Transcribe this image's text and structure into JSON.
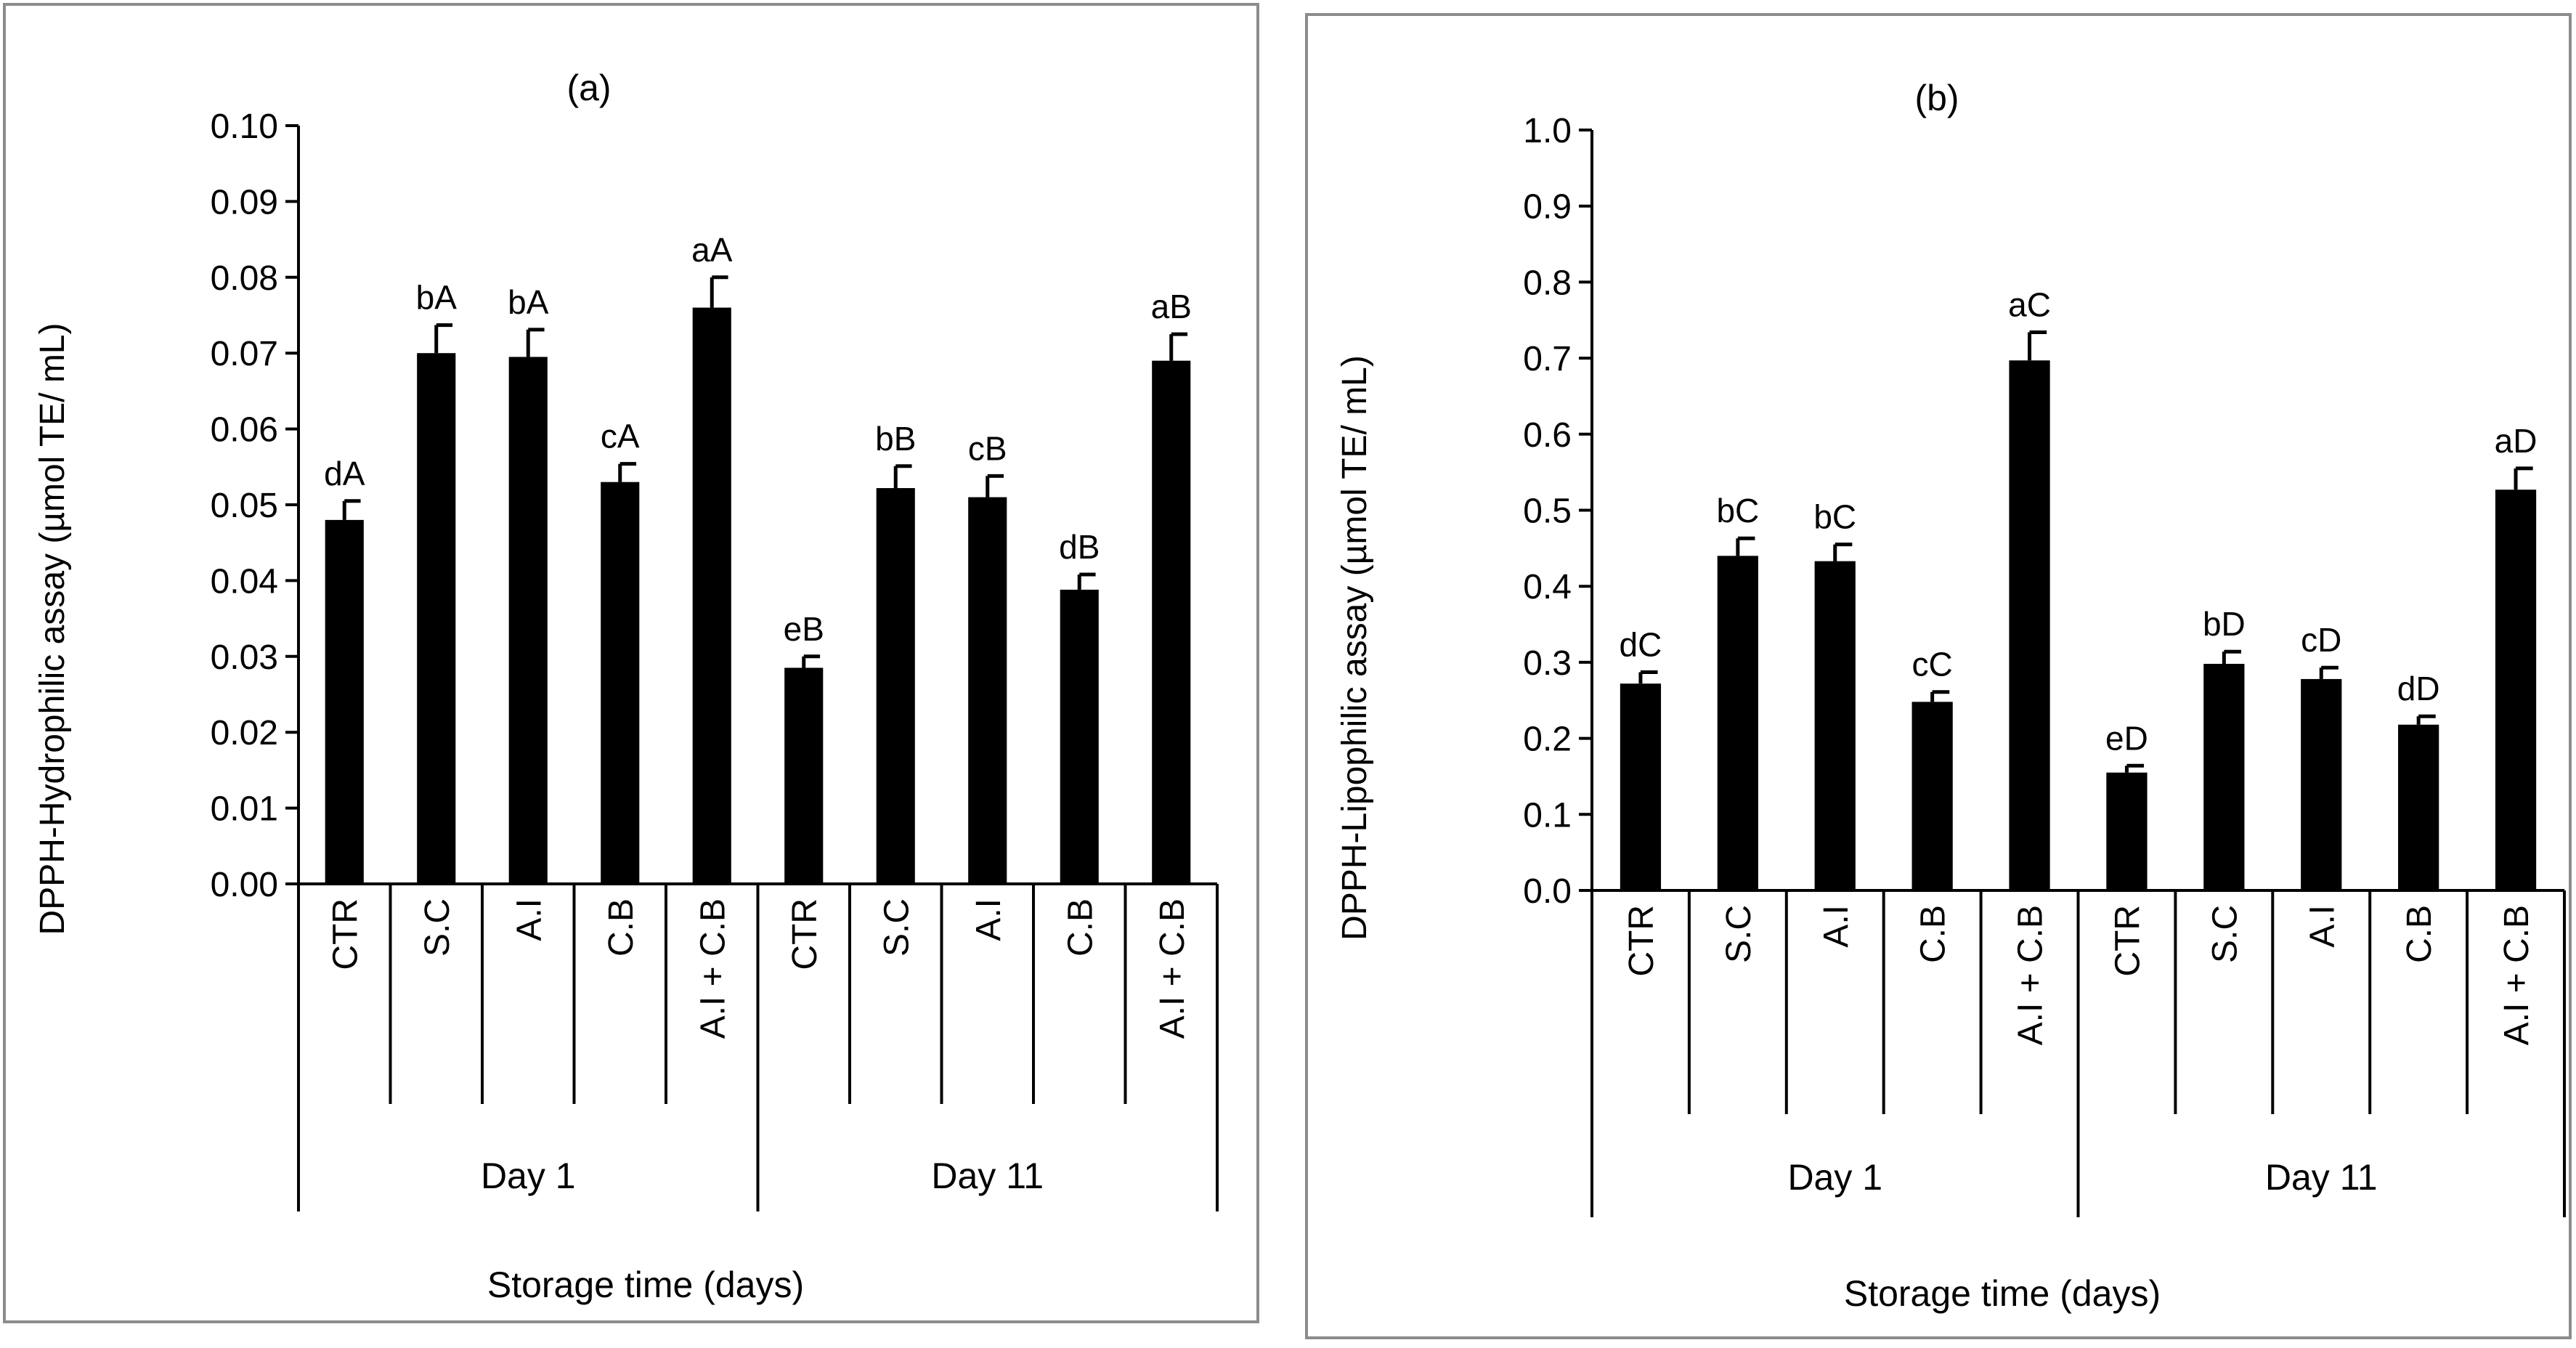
{
  "chart_data": [
    {
      "type": "bar",
      "panel_label": "(a)",
      "ylabel": "DPPH-Hydrophilic assay (µmol TE/ mL)",
      "xlabel": "Storage time (days)",
      "ylim": [
        0,
        0.1
      ],
      "yticks": [
        "0.00",
        "0.01",
        "0.02",
        "0.03",
        "0.04",
        "0.05",
        "0.06",
        "0.07",
        "0.08",
        "0.09",
        "0.10"
      ],
      "groups": [
        "Day 1",
        "Day 11"
      ],
      "categories": [
        "CTR",
        "S.C",
        "A.I",
        "C.B",
        "A.I + C.B",
        "CTR",
        "S.C",
        "A.I",
        "C.B",
        "A.I + C.B"
      ],
      "values": [
        0.048,
        0.07,
        0.0695,
        0.053,
        0.076,
        0.0285,
        0.0522,
        0.051,
        0.0388,
        0.069
      ],
      "errors": [
        0.0025,
        0.0037,
        0.0036,
        0.0024,
        0.004,
        0.0015,
        0.0029,
        0.0028,
        0.002,
        0.0035
      ],
      "bar_labels": [
        "dA",
        "bA",
        "bA",
        "cA",
        "aA",
        "eB",
        "bB",
        "cB",
        "dB",
        "aB"
      ],
      "bar_color": "#000000"
    },
    {
      "type": "bar",
      "panel_label": "(b)",
      "ylabel": "DPPH-Lipophilic assay (µmol TE/ mL)",
      "xlabel": "Storage time (days)",
      "ylim": [
        0,
        1.0
      ],
      "yticks": [
        "0.0",
        "0.1",
        "0.2",
        "0.3",
        "0.4",
        "0.5",
        "0.6",
        "0.7",
        "0.8",
        "0.9",
        "1.0"
      ],
      "groups": [
        "Day 1",
        "Day 11"
      ],
      "categories": [
        "CTR",
        "S.C",
        "A.I",
        "C.B",
        "A.I + C.B",
        "CTR",
        "S.C",
        "A.I",
        "C.B",
        "A.I + C.B"
      ],
      "values": [
        0.272,
        0.44,
        0.433,
        0.248,
        0.697,
        0.155,
        0.298,
        0.278,
        0.218,
        0.527
      ],
      "errors": [
        0.015,
        0.023,
        0.022,
        0.013,
        0.037,
        0.009,
        0.016,
        0.015,
        0.011,
        0.028
      ],
      "bar_labels": [
        "dC",
        "bC",
        "bC",
        "cC",
        "aC",
        "eD",
        "bD",
        "cD",
        "dD",
        "aD"
      ],
      "bar_color": "#000000"
    }
  ]
}
